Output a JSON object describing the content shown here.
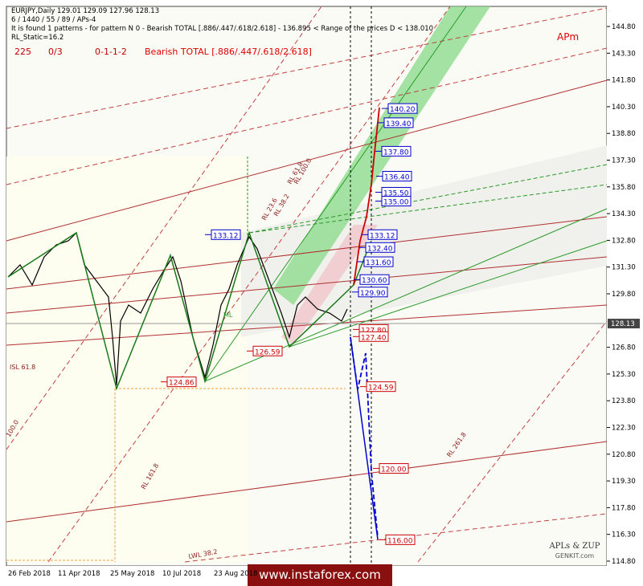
{
  "header": {
    "lines": [
      "EURJPY,Daily  129.01 129.09 127.96 128.13",
      "6 / 1440 / 55 / 89 / APs-4",
      "It is found 1 patterns  -  for pattern N 0 - Bearish TOTAL [.886/.447/.618/2.618] - 136.895 < Range of the prices D < 138.010",
      "RL_Static=16.2"
    ],
    "stats": [
      "225",
      "0/3",
      "0-1-1-2"
    ],
    "pattern": "Bearish TOTAL [.886/.447/.618/2.618]",
    "tag": "APm"
  },
  "price_axis": {
    "ticks": [
      "144.80",
      "143.30",
      "141.80",
      "140.30",
      "138.80",
      "137.30",
      "135.80",
      "134.30",
      "132.80",
      "131.30",
      "129.80",
      "126.80",
      "125.30",
      "123.80",
      "122.30",
      "120.80",
      "119.30",
      "117.80",
      "116.30",
      "114.80"
    ],
    "current": "128.13"
  },
  "date_axis": [
    "26 Feb 2018",
    "11 Apr 2018",
    "25 May 2018",
    "10 Jul 2018",
    "23 Aug 2018"
  ],
  "levels": {
    "blue": [
      "140.20",
      "139.40",
      "137.80",
      "136.40",
      "135.50",
      "135.00",
      "133.12",
      "132.40",
      "131.60",
      "130.60",
      "129.90"
    ],
    "red": [
      "127.80",
      "127.40",
      "124.59",
      "120.00",
      "116.00"
    ]
  },
  "pattern_points": {
    "blue": [
      "133.12"
    ],
    "red": [
      "126.59",
      "124.86"
    ]
  },
  "line_labels": [
    "RL 161.8",
    "RL 100.0",
    "RL 61.8",
    "RL 38.2",
    "RL 23.6",
    "RL 261.8",
    "LWL 38.2",
    "ISL 61.8",
    "100.0",
    "ML"
  ],
  "footer": {
    "watermark": "www.instaforex.com",
    "brand": "APLs & ZUP",
    "site": "GENKIT.com"
  }
}
